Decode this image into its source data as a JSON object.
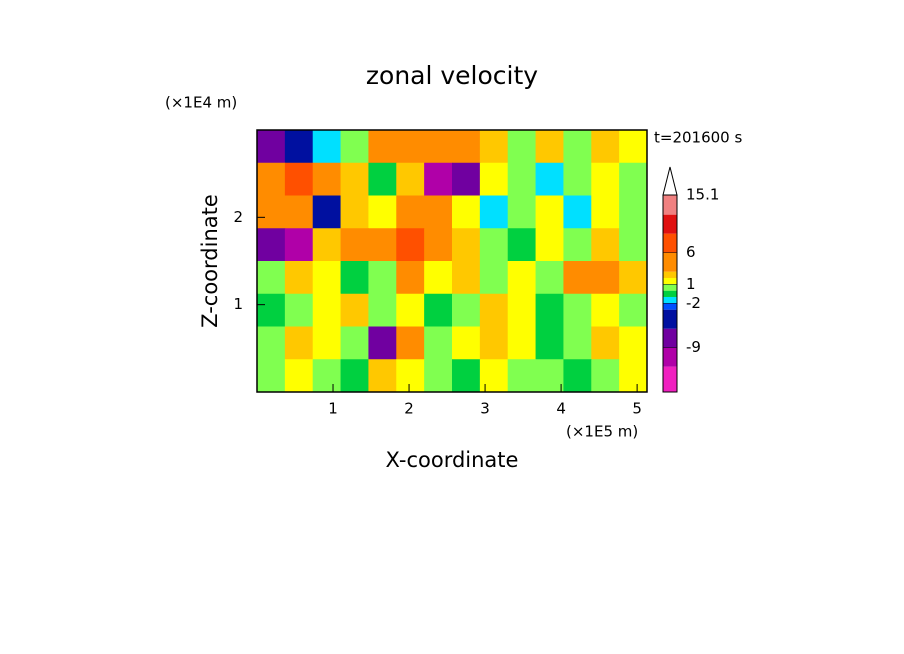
{
  "chart_data": {
    "type": "contour",
    "title": "zonal velocity",
    "y_unit": "(×1E4 m)",
    "x_unit": "(×1E5 m)",
    "time_label": "t=201600 s",
    "xlabel": "X-coordinate",
    "ylabel": "Z-coordinate",
    "xlim": [
      0,
      5.13
    ],
    "ylim": [
      0,
      3
    ],
    "xticks": [
      1,
      2,
      3,
      4,
      5
    ],
    "yticks": [
      1,
      2
    ],
    "z": [
      [
        -9,
        -5,
        -2,
        0,
        3,
        4,
        4,
        3,
        2,
        0,
        2,
        0,
        2,
        1
      ],
      [
        4,
        6,
        4,
        2,
        -1,
        2,
        -10,
        -8,
        1,
        0,
        -2,
        0,
        1,
        0
      ],
      [
        3,
        4,
        -6,
        2,
        1,
        5,
        3,
        1,
        -2,
        0,
        1,
        -2,
        1,
        0
      ],
      [
        -8,
        -10,
        2,
        3,
        5,
        6,
        4,
        2,
        0,
        -1,
        1,
        0,
        2,
        0
      ],
      [
        0,
        2,
        1,
        -1,
        0,
        3,
        1,
        2,
        0,
        1,
        0,
        3,
        4,
        2
      ],
      [
        -1,
        0,
        1,
        2,
        0,
        1,
        -1,
        0,
        2,
        1,
        -1,
        0,
        1,
        0
      ],
      [
        0,
        2,
        1,
        0,
        -8,
        3,
        0,
        1,
        2,
        1,
        -1,
        0,
        2,
        1
      ],
      [
        0,
        1,
        0,
        -1,
        2,
        1,
        0,
        -1,
        1,
        0,
        0,
        -1,
        0,
        1
      ]
    ],
    "levels": [
      -16,
      -12,
      -9,
      -6,
      -3,
      -2,
      -1,
      0,
      1,
      2,
      3,
      6,
      9,
      12,
      15.1
    ],
    "colors": [
      "#f020c0",
      "#b000a8",
      "#7000a0",
      "#0010a0",
      "#0050ff",
      "#00e0ff",
      "#00d040",
      "#80ff50",
      "#ffff00",
      "#ffc800",
      "#ff8c00",
      "#ff5000",
      "#e01010",
      "#f08080"
    ],
    "cbar_ticks": [
      15.1,
      6,
      1,
      -2,
      -9
    ]
  }
}
